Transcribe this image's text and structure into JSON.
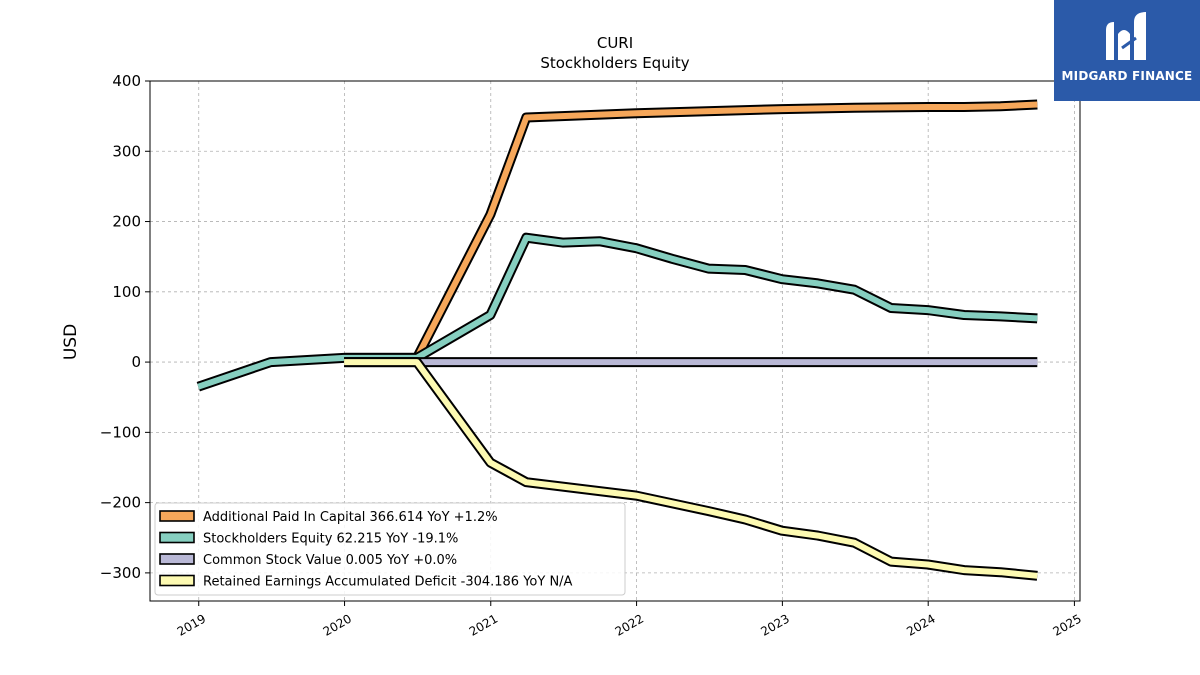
{
  "chart_data": {
    "type": "line",
    "title": "CURI",
    "subtitle": "Stockholders  Equity",
    "xlabel": "",
    "ylabel": "USD",
    "xlim": [
      "2018-09-01",
      "2025-01-15"
    ],
    "ylim": [
      -340,
      400
    ],
    "yticks": [
      400,
      300,
      200,
      100,
      0,
      -100,
      -200,
      -300
    ],
    "ytick_labels": [
      "400",
      "300",
      "200",
      "100",
      "0",
      "−100",
      "−200",
      "−300"
    ],
    "xticks": [
      "2019-01-01",
      "2020-01-01",
      "2021-01-01",
      "2022-01-01",
      "2023-01-01",
      "2024-01-01",
      "2025-01-01"
    ],
    "xtick_labels": [
      "2019",
      "2020",
      "2021",
      "2022",
      "2023",
      "2024",
      "2025"
    ],
    "grid": true,
    "legend_position": "lower-left",
    "series": [
      {
        "name": "Additional Paid In Capital",
        "legend_label": "Additional Paid In Capital  366.614 YoY +1.2%",
        "color": "#f6a75a",
        "points": [
          [
            "2019-12-31",
            6
          ],
          [
            "2020-06-30",
            6
          ],
          [
            "2020-12-31",
            210
          ],
          [
            "2021-03-31",
            348
          ],
          [
            "2021-12-31",
            354
          ],
          [
            "2022-12-31",
            360
          ],
          [
            "2023-06-30",
            362
          ],
          [
            "2023-12-31",
            363
          ],
          [
            "2024-03-31",
            363
          ],
          [
            "2024-06-30",
            364
          ],
          [
            "2024-09-30",
            366.614
          ]
        ]
      },
      {
        "name": "Stockholders Equity",
        "legend_label": "Stockholders Equity  62.215 YoY -19.1%",
        "color": "#86cfc0",
        "points": [
          [
            "2018-12-31",
            -35
          ],
          [
            "2019-06-30",
            0
          ],
          [
            "2019-12-31",
            6
          ],
          [
            "2020-06-30",
            6
          ],
          [
            "2020-12-31",
            67
          ],
          [
            "2021-03-31",
            177
          ],
          [
            "2021-06-30",
            170
          ],
          [
            "2021-09-30",
            172
          ],
          [
            "2021-12-31",
            162
          ],
          [
            "2022-03-31",
            147
          ],
          [
            "2022-06-30",
            133
          ],
          [
            "2022-09-30",
            131
          ],
          [
            "2022-12-31",
            118
          ],
          [
            "2023-03-31",
            112
          ],
          [
            "2023-06-30",
            103
          ],
          [
            "2023-09-30",
            77
          ],
          [
            "2023-12-31",
            74
          ],
          [
            "2024-03-31",
            67
          ],
          [
            "2024-06-30",
            65
          ],
          [
            "2024-09-30",
            62.215
          ]
        ]
      },
      {
        "name": "Common Stock Value",
        "legend_label": "Common Stock Value  0.005 YoY +0.0%",
        "color": "#b9b8d6",
        "points": [
          [
            "2019-12-31",
            0.005
          ],
          [
            "2024-09-30",
            0.005
          ]
        ]
      },
      {
        "name": "Retained Earnings Accumulated Deficit",
        "legend_label": "Retained Earnings Accumulated Deficit  -304.186 YoY N/A",
        "color": "#fdfab2",
        "points": [
          [
            "2019-12-31",
            0
          ],
          [
            "2020-06-30",
            0
          ],
          [
            "2020-12-31",
            -143
          ],
          [
            "2021-03-31",
            -171
          ],
          [
            "2021-12-31",
            -190
          ],
          [
            "2022-06-30",
            -212
          ],
          [
            "2022-09-30",
            -224
          ],
          [
            "2022-12-31",
            -240
          ],
          [
            "2023-03-31",
            -247
          ],
          [
            "2023-06-30",
            -257
          ],
          [
            "2023-09-30",
            -284
          ],
          [
            "2023-12-31",
            -288
          ],
          [
            "2024-03-31",
            -296
          ],
          [
            "2024-06-30",
            -299
          ],
          [
            "2024-09-30",
            -304.186
          ]
        ]
      }
    ]
  },
  "logo": {
    "text": "MIDGARD FINANCE",
    "background": "#2b5aa9"
  }
}
